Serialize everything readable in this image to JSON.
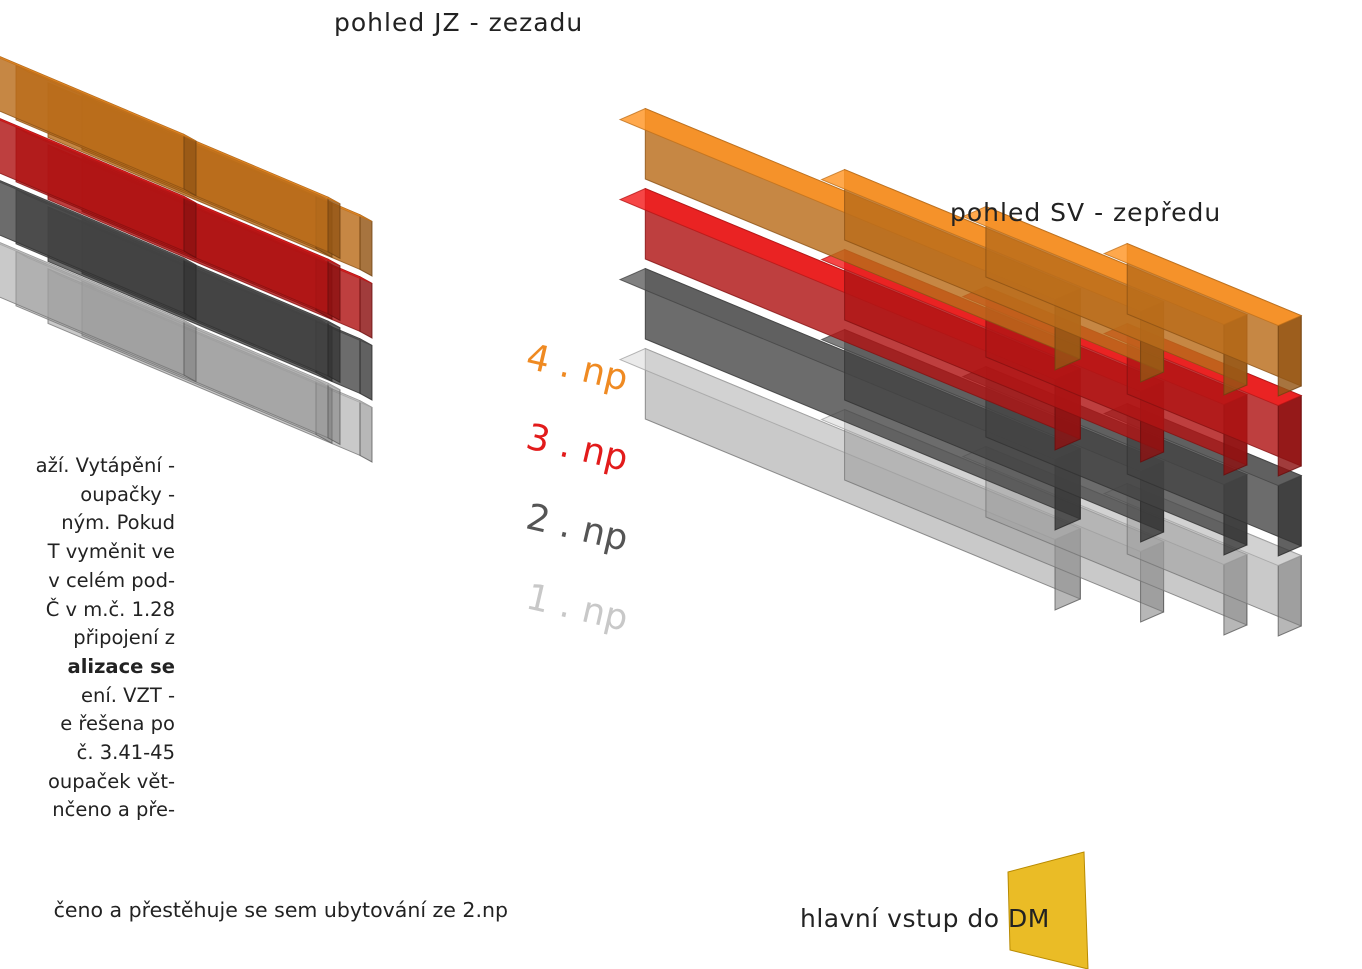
{
  "view_jz": {
    "title": "pohled JZ - zezadu"
  },
  "view_sv": {
    "title": "pohled SV - zepředu"
  },
  "floors": [
    {
      "label": "4 . np",
      "color": "#ef8a22"
    },
    {
      "label": "3 . np",
      "color": "#e21b1b"
    },
    {
      "label": "2 . np",
      "color": "#555555"
    },
    {
      "label": "1 . np",
      "color": "#c8c8c8"
    }
  ],
  "description": [
    {
      "text": "aží. Vytápění -",
      "bold": false
    },
    {
      "text": "oupačky -",
      "bold": false
    },
    {
      "text": "ným. Pokud",
      "bold": false
    },
    {
      "text": "T vyměnit ve",
      "bold": false
    },
    {
      "text": "v celém pod-",
      "bold": false
    },
    {
      "text": "Č v m.č. 1.28",
      "bold": false
    },
    {
      "text": "připojení z",
      "bold": false
    },
    {
      "text": "alizace se",
      "bold": true
    },
    {
      "text": "ení. VZT -",
      "bold": false
    },
    {
      "text": "e řešena po",
      "bold": false
    },
    {
      "text": "č. 3.41-45",
      "bold": false
    },
    {
      "text": "oupaček vět-",
      "bold": false
    },
    {
      "text": "nčeno a pře-",
      "bold": false
    }
  ],
  "bottom_text": "čeno a přestěhuje se sem ubytování ze 2.np",
  "entrance": {
    "label": "hlavní vstup do DM",
    "color": "#e6b000"
  },
  "colors": {
    "orange": "#ef8a22",
    "red": "#e21b1b",
    "gray": "#555555",
    "light": "#c8c8c8"
  }
}
